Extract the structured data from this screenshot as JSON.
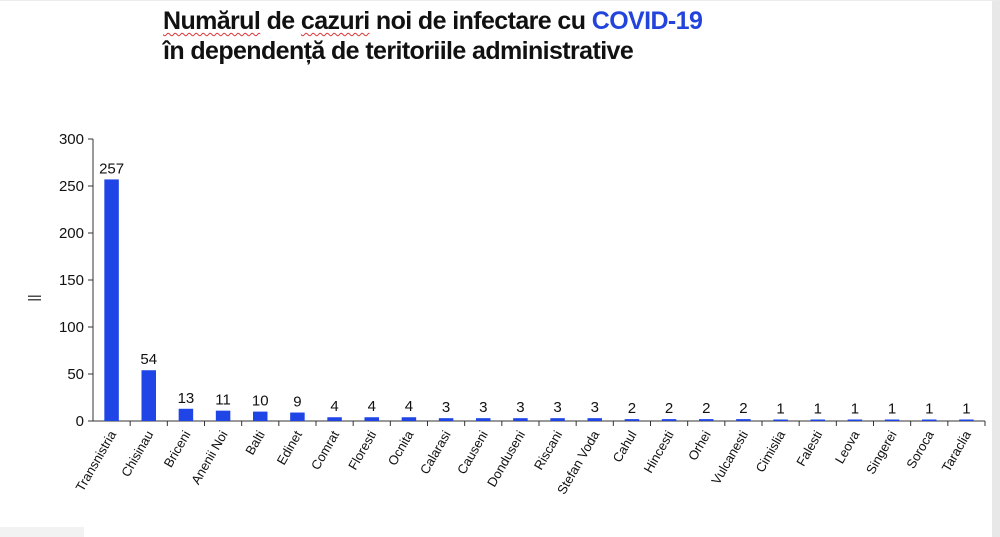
{
  "title": {
    "line1_part1": "Numărul",
    "line1_part2": " de ",
    "line1_part3": "cazuri",
    "line1_part4": " noi de infectare cu ",
    "line1_accent": "COVID-19",
    "line2": "în dependență de teritoriile administrative"
  },
  "colors": {
    "bar": "#1f45e6",
    "accent": "#2244dd",
    "axis": "#333333"
  },
  "chart_data": {
    "type": "bar",
    "ylabel": "||",
    "ylim": [
      0,
      300
    ],
    "yticks": [
      0,
      50,
      100,
      150,
      200,
      250,
      300
    ],
    "grid": false,
    "categories": [
      "Transnistria",
      "Chisinau",
      "Briceni",
      "Anenii Noi",
      "Balti",
      "Edinet",
      "Comrat",
      "Floresti",
      "Ocnita",
      "Calarasi",
      "Causeni",
      "Donduseni",
      "Riscani",
      "Stefan Voda",
      "Cahul",
      "Hincesti",
      "Orhei",
      "Vulcanesti",
      "Cimislia",
      "Falesti",
      "Leova",
      "Singerei",
      "Soroca",
      "Taraclia"
    ],
    "values": [
      257,
      54,
      13,
      11,
      10,
      9,
      4,
      4,
      4,
      3,
      3,
      3,
      3,
      3,
      2,
      2,
      2,
      2,
      1,
      1,
      1,
      1,
      1,
      1
    ]
  }
}
